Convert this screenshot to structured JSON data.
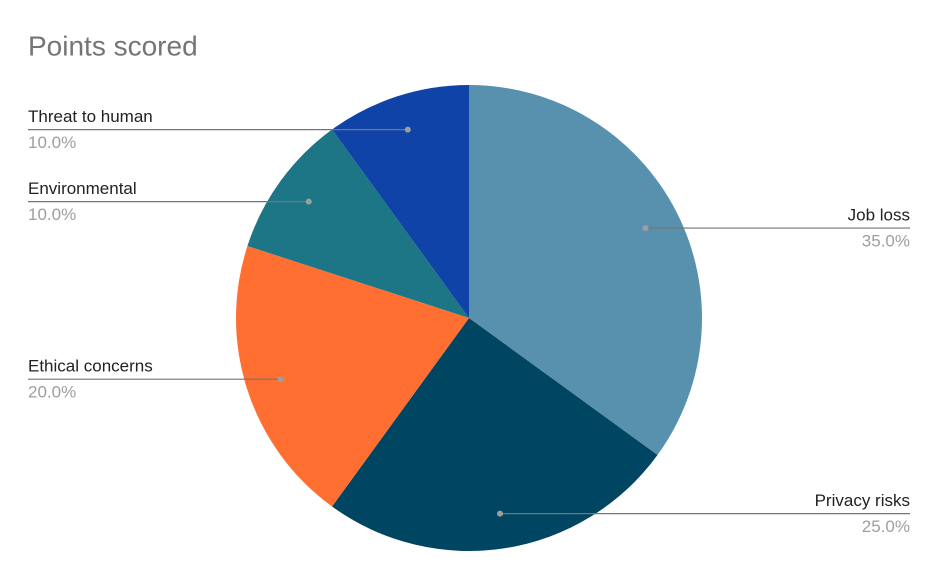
{
  "chart_data": {
    "type": "pie",
    "title": "Points scored",
    "categories": [
      "Job loss",
      "Privacy risks",
      "Ethical concerns",
      "Environmental",
      "Threat to human"
    ],
    "values": [
      35,
      25,
      20,
      10,
      10
    ],
    "value_labels": [
      "35.0%",
      "25.0%",
      "20.0%",
      "10.0%",
      "10.0%"
    ],
    "colors": [
      "#5891ad",
      "#004561",
      "#ff6f31",
      "#1c7685",
      "#0f43a8"
    ]
  }
}
